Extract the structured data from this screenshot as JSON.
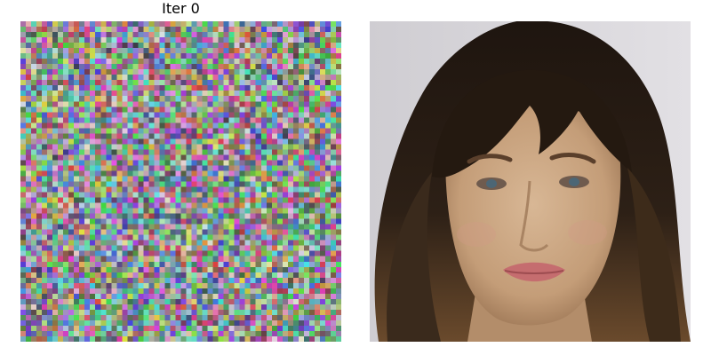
{
  "left_panel": {
    "title": "Iter 0",
    "content": "random-noise-image",
    "grid_cells": 60
  },
  "right_panel": {
    "content": "face-portrait-image"
  },
  "colors": {
    "background": "#ffffff",
    "wall": "#d9d6d9",
    "hair": "#2a1d14",
    "skin": "#caa684",
    "lips": "#c26a6c"
  }
}
